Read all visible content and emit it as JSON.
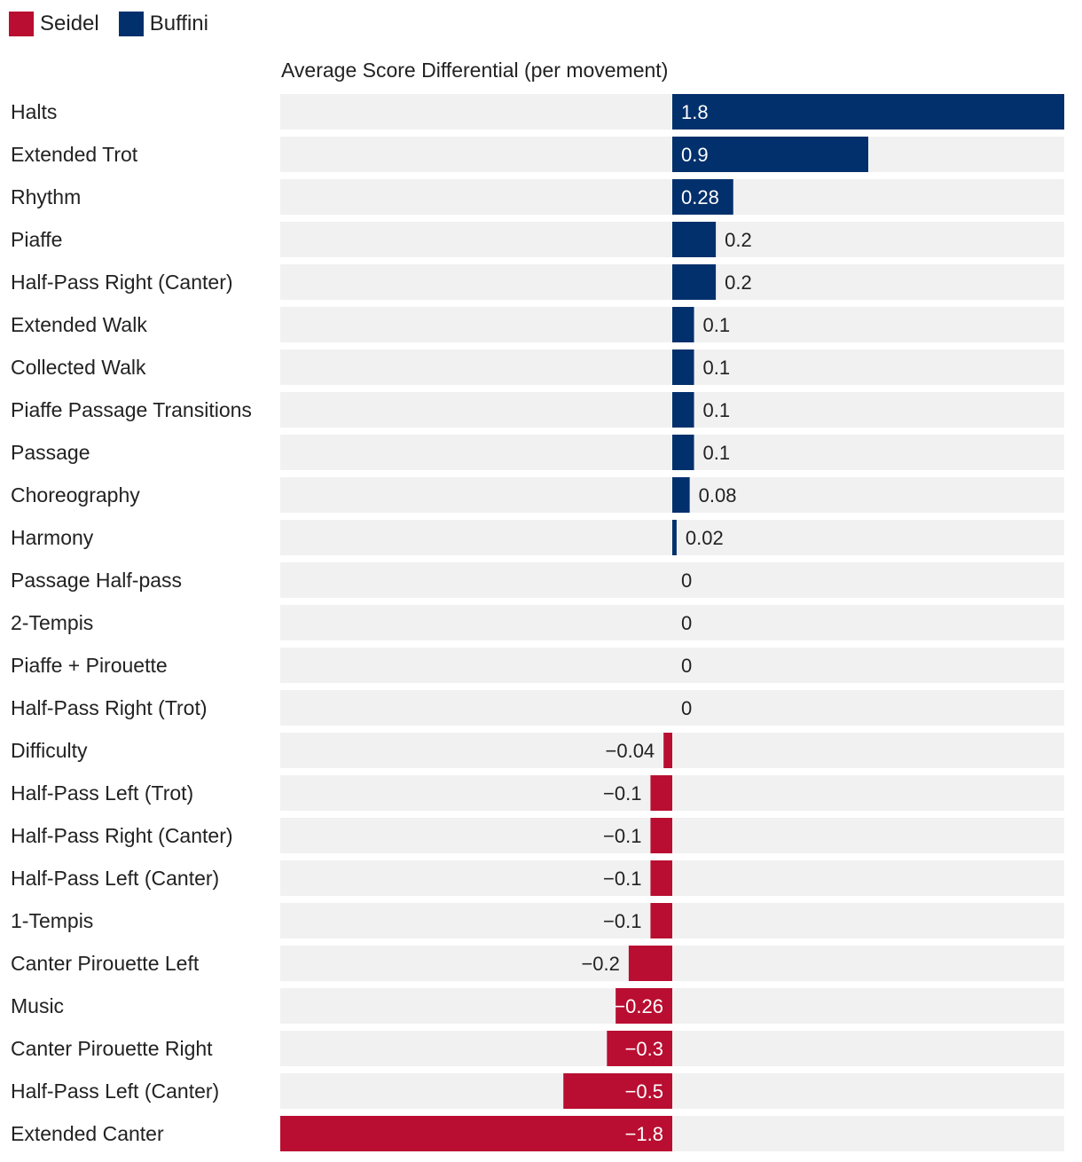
{
  "legend": [
    {
      "name": "Seidel",
      "color": "#B90E31"
    },
    {
      "name": "Buffini",
      "color": "#02306C"
    }
  ],
  "colors": {
    "positive": "#02306C",
    "negative": "#B90E31",
    "track": "#F1F1F1"
  },
  "chart_data": {
    "type": "bar",
    "orientation": "horizontal",
    "title": "Average Score Differential (per movement)",
    "xlim": [
      -1.8,
      1.8
    ],
    "categories": [
      "Halts",
      "Extended Trot",
      "Rhythm",
      "Piaffe",
      "Half-Pass Right (Canter)",
      "Extended Walk",
      "Collected Walk",
      "Piaffe Passage Transitions",
      "Passage",
      "Choreography",
      "Harmony",
      "Passage Half-pass",
      "2-Tempis",
      "Piaffe + Pirouette",
      "Half-Pass Right (Trot)",
      "Difficulty",
      "Half-Pass Left (Trot)",
      "Half-Pass Right (Canter)",
      "Half-Pass Left (Canter)",
      "1-Tempis",
      "Canter Pirouette Left",
      "Music",
      "Canter Pirouette Right",
      "Half-Pass Left (Canter)",
      "Extended Canter"
    ],
    "values": [
      1.8,
      0.9,
      0.28,
      0.2,
      0.2,
      0.1,
      0.1,
      0.1,
      0.1,
      0.08,
      0.02,
      0,
      0,
      0,
      0,
      -0.04,
      -0.1,
      -0.1,
      -0.1,
      -0.1,
      -0.2,
      -0.26,
      -0.3,
      -0.5,
      -1.8
    ],
    "value_labels": [
      "1.8",
      "0.9",
      "0.28",
      "0.2",
      "0.2",
      "0.1",
      "0.1",
      "0.1",
      "0.1",
      "0.08",
      "0.02",
      "0",
      "0",
      "0",
      "0",
      "−0.04",
      "−0.1",
      "−0.1",
      "−0.1",
      "−0.1",
      "−0.2",
      "−0.26",
      "−0.3",
      "−0.5",
      "−1.8"
    ]
  }
}
